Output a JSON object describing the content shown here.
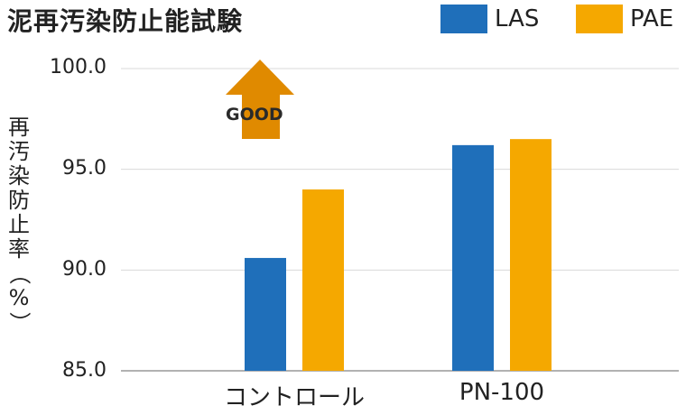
{
  "chart_data": {
    "type": "bar",
    "title": "泥再汚染防止能試験",
    "ylabel": "再汚染防止率（%）",
    "xlabel": "",
    "categories": [
      "コントロール",
      "PN-100"
    ],
    "series": [
      {
        "name": "LAS",
        "values": [
          90.6,
          96.2
        ]
      },
      {
        "name": "PAE",
        "values": [
          94.0,
          96.5
        ]
      }
    ],
    "ylim": [
      85.0,
      100.0
    ],
    "yticks": [
      "85.0",
      "90.0",
      "95.0",
      "100.0"
    ],
    "grid": true,
    "legend": "top-right",
    "annotation": "GOOD"
  },
  "colors": {
    "LAS": "#1f6fba",
    "PAE": "#f5a800",
    "arrow": "#e08a00",
    "grid": "#d9d9d9",
    "axis": "#999999"
  }
}
